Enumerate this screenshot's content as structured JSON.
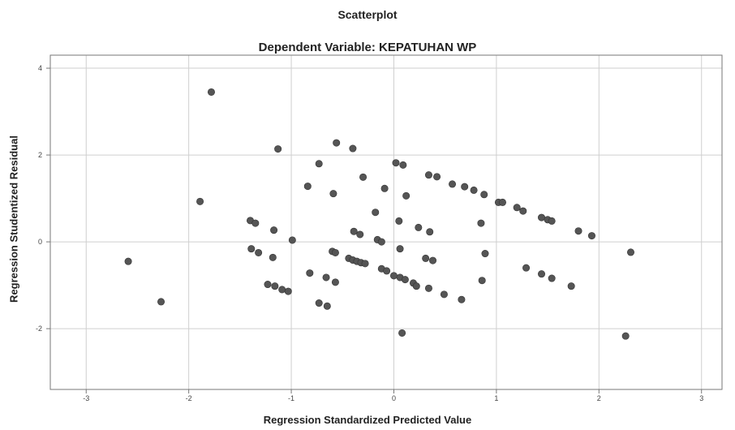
{
  "chart_data": {
    "type": "scatter",
    "title": "Scatterplot",
    "subtitle": "Dependent Variable: KEPATUHAN WP",
    "xlabel": "Regression Standardized Predicted Value",
    "ylabel": "Regression Studentized Residual",
    "xlim": [
      -3.35,
      3.2
    ],
    "ylim": [
      -3.4,
      4.3
    ],
    "xticks": [
      -3,
      -2,
      -1,
      0,
      1,
      2,
      3
    ],
    "yticks": [
      -2,
      0,
      2,
      4
    ],
    "xtick_labels": [
      "-3",
      "-2",
      "-1",
      "0",
      "1",
      "2",
      "3"
    ],
    "ytick_labels": [
      "-2",
      "0",
      "2",
      "4"
    ],
    "grid": true,
    "marker_color": "#555555",
    "points": [
      [
        -1.78,
        3.45
      ],
      [
        -1.13,
        2.14
      ],
      [
        -0.56,
        2.28
      ],
      [
        -0.4,
        2.15
      ],
      [
        -0.73,
        1.8
      ],
      [
        0.02,
        1.82
      ],
      [
        0.09,
        1.77
      ],
      [
        0.34,
        1.54
      ],
      [
        0.42,
        1.5
      ],
      [
        0.57,
        1.33
      ],
      [
        0.69,
        1.27
      ],
      [
        0.78,
        1.19
      ],
      [
        0.88,
        1.09
      ],
      [
        1.02,
        0.91
      ],
      [
        1.06,
        0.91
      ],
      [
        1.2,
        0.79
      ],
      [
        1.26,
        0.71
      ],
      [
        1.44,
        0.56
      ],
      [
        1.5,
        0.51
      ],
      [
        1.54,
        0.48
      ],
      [
        1.8,
        0.25
      ],
      [
        1.93,
        0.14
      ],
      [
        -0.3,
        1.49
      ],
      [
        -0.09,
        1.23
      ],
      [
        0.12,
        1.06
      ],
      [
        -0.84,
        1.28
      ],
      [
        -0.59,
        1.11
      ],
      [
        -1.89,
        0.93
      ],
      [
        -0.18,
        0.68
      ],
      [
        0.05,
        0.48
      ],
      [
        0.24,
        0.33
      ],
      [
        0.35,
        0.23
      ],
      [
        0.85,
        0.43
      ],
      [
        -1.4,
        0.49
      ],
      [
        -1.35,
        0.43
      ],
      [
        -1.17,
        0.27
      ],
      [
        -0.39,
        0.24
      ],
      [
        -0.33,
        0.17
      ],
      [
        -0.16,
        0.05
      ],
      [
        -0.12,
        0.0
      ],
      [
        -0.99,
        0.04
      ],
      [
        -1.39,
        -0.16
      ],
      [
        -1.32,
        -0.25
      ],
      [
        -1.18,
        -0.36
      ],
      [
        -0.6,
        -0.22
      ],
      [
        -0.57,
        -0.25
      ],
      [
        -0.44,
        -0.38
      ],
      [
        -0.4,
        -0.42
      ],
      [
        -0.36,
        -0.45
      ],
      [
        -0.32,
        -0.48
      ],
      [
        -0.28,
        -0.5
      ],
      [
        -0.12,
        -0.62
      ],
      [
        -0.07,
        -0.67
      ],
      [
        0.06,
        -0.16
      ],
      [
        0.31,
        -0.38
      ],
      [
        0.38,
        -0.43
      ],
      [
        0.89,
        -0.27
      ],
      [
        -0.82,
        -0.72
      ],
      [
        -0.66,
        -0.82
      ],
      [
        -0.57,
        -0.93
      ],
      [
        0.0,
        -0.78
      ],
      [
        0.06,
        -0.82
      ],
      [
        0.11,
        -0.87
      ],
      [
        0.19,
        -0.95
      ],
      [
        0.22,
        -1.02
      ],
      [
        0.34,
        -1.07
      ],
      [
        0.49,
        -1.21
      ],
      [
        0.66,
        -1.33
      ],
      [
        0.86,
        -0.89
      ],
      [
        1.29,
        -0.6
      ],
      [
        1.44,
        -0.74
      ],
      [
        1.54,
        -0.84
      ],
      [
        1.73,
        -1.02
      ],
      [
        -1.23,
        -0.98
      ],
      [
        -1.16,
        -1.02
      ],
      [
        -1.09,
        -1.1
      ],
      [
        -1.03,
        -1.14
      ],
      [
        -0.73,
        -1.41
      ],
      [
        -0.65,
        -1.48
      ],
      [
        -2.59,
        -0.45
      ],
      [
        -2.27,
        -1.38
      ],
      [
        0.08,
        -2.1
      ],
      [
        2.26,
        -2.17
      ],
      [
        2.31,
        -0.24
      ]
    ]
  }
}
